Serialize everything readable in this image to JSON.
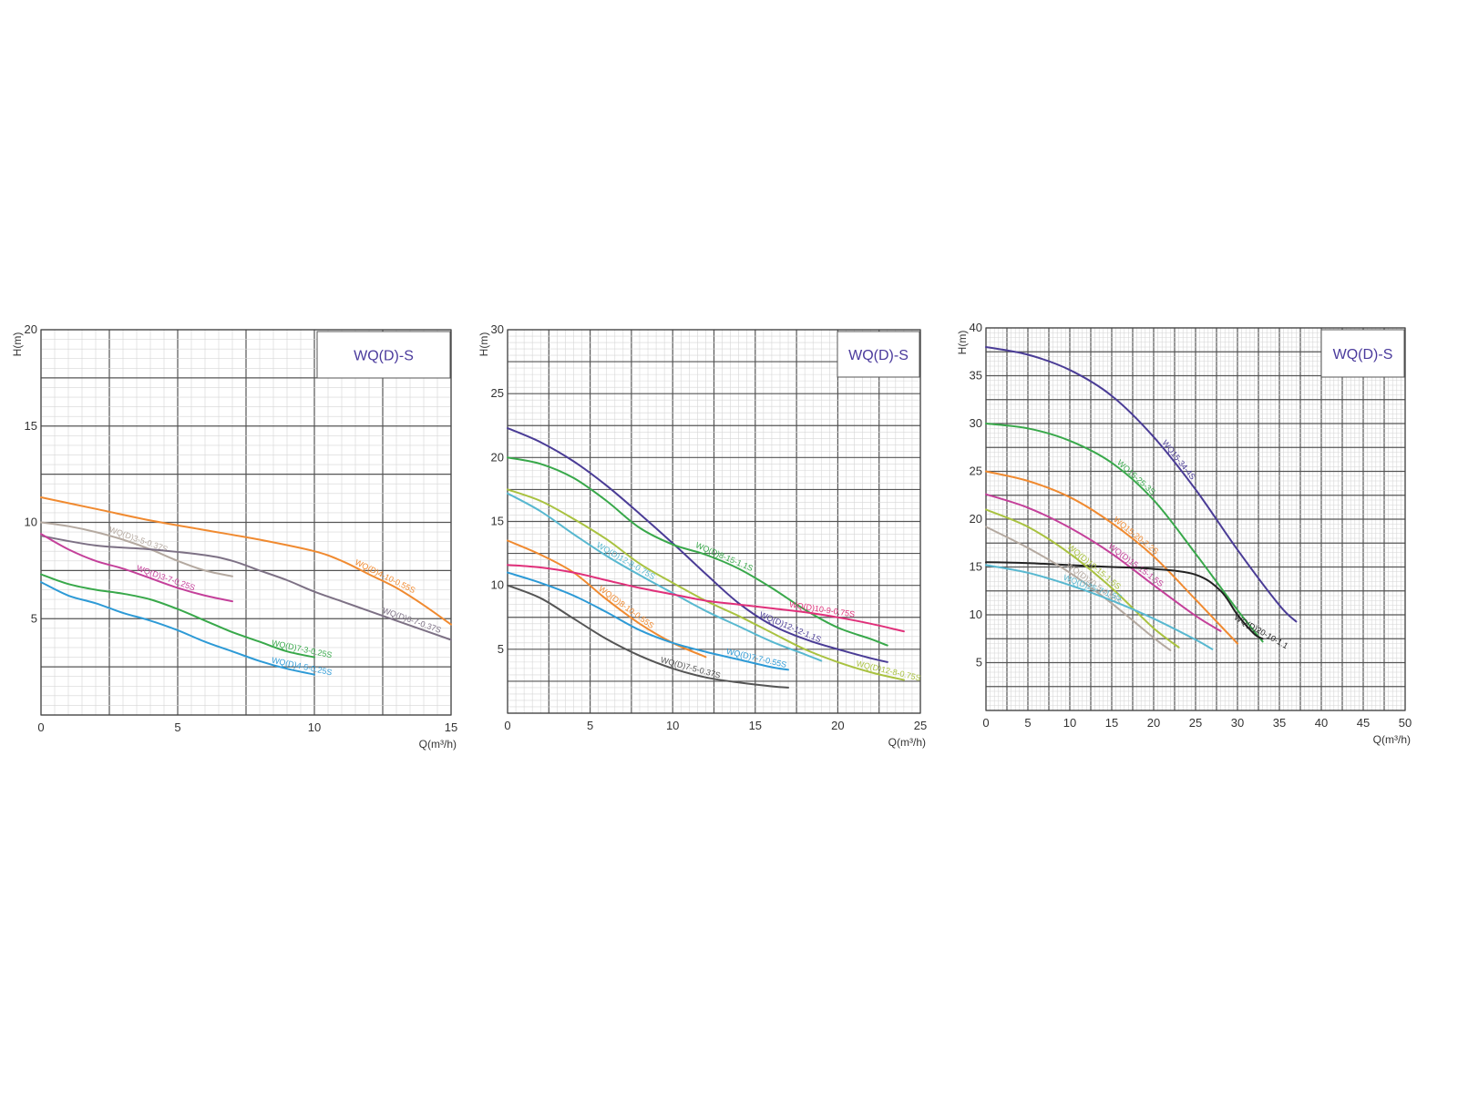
{
  "chart_data": [
    {
      "type": "line",
      "title": "WQ(D)-S",
      "xlabel": "Q(m³/h)",
      "ylabel": "H(m)",
      "xlim": [
        0,
        15
      ],
      "ylim": [
        0,
        20
      ],
      "xticks": [
        "0",
        "5",
        "10",
        "15"
      ],
      "yticks": [
        "5",
        "10",
        "15",
        "20"
      ],
      "grid": true,
      "series": [
        {
          "name": "WQ(D)4-10-0.55S",
          "color": "#f08a30",
          "x": [
            0,
            2,
            4,
            6,
            8,
            10,
            11,
            12,
            13,
            14,
            15
          ],
          "y": [
            11.3,
            10.7,
            10.1,
            9.6,
            9.1,
            8.5,
            8.0,
            7.3,
            6.6,
            5.7,
            4.7
          ]
        },
        {
          "name": "WQ(D)3-5-0.37S",
          "color": "#b4a9a0",
          "x": [
            0,
            1,
            2,
            3,
            4,
            5,
            6,
            7
          ],
          "y": [
            10.0,
            9.8,
            9.5,
            9.1,
            8.6,
            8.0,
            7.5,
            7.2
          ]
        },
        {
          "name": "WQ(D)6-7-0.37S",
          "color": "#7d7185",
          "x": [
            0,
            2,
            4,
            6,
            7,
            8,
            9,
            10,
            11,
            12,
            13,
            14,
            15
          ],
          "y": [
            9.3,
            8.8,
            8.6,
            8.3,
            8.0,
            7.5,
            7.0,
            6.4,
            5.9,
            5.4,
            4.9,
            4.4,
            3.9
          ]
        },
        {
          "name": "WQ(D)3-7-0.25S",
          "color": "#c4409a",
          "x": [
            0,
            1,
            2,
            3,
            4,
            5,
            6,
            7
          ],
          "y": [
            9.4,
            8.6,
            8.0,
            7.6,
            7.1,
            6.6,
            6.2,
            5.9
          ]
        },
        {
          "name": "WQ(D)7-3-0.25S",
          "color": "#38a84a",
          "x": [
            0,
            1,
            2,
            3,
            4,
            5,
            6,
            7,
            8,
            9,
            10
          ],
          "y": [
            7.3,
            6.8,
            6.5,
            6.3,
            6.0,
            5.5,
            4.9,
            4.3,
            3.8,
            3.3,
            3.0
          ]
        },
        {
          "name": "WQ(D)4-5-0.25S",
          "color": "#2d9ad6",
          "x": [
            0,
            1,
            2,
            3,
            4,
            5,
            6,
            7,
            8,
            9,
            10
          ],
          "y": [
            6.9,
            6.2,
            5.8,
            5.3,
            4.9,
            4.4,
            3.8,
            3.3,
            2.8,
            2.4,
            2.1
          ]
        }
      ]
    },
    {
      "type": "line",
      "title": "WQ(D)-S",
      "xlabel": "Q(m³/h)",
      "ylabel": "H(m)",
      "xlim": [
        0,
        25
      ],
      "ylim": [
        0,
        30
      ],
      "xticks": [
        "0",
        "5",
        "10",
        "15",
        "20",
        "25"
      ],
      "yticks": [
        "5",
        "10",
        "15",
        "20",
        "25",
        "30"
      ],
      "grid": true,
      "series": [
        {
          "name": "WQ(D)12-12-1.1S",
          "color": "#4a3c96",
          "x": [
            0,
            2,
            4,
            6,
            8,
            10,
            12,
            14,
            16,
            18,
            20,
            22,
            23
          ],
          "y": [
            22.3,
            21.2,
            19.7,
            17.8,
            15.6,
            13.3,
            10.9,
            8.6,
            6.9,
            5.8,
            5.0,
            4.3,
            4.0
          ]
        },
        {
          "name": "WQ(D)8-15-1.1S",
          "color": "#38a84a",
          "x": [
            0,
            2,
            4,
            6,
            8,
            10,
            12,
            14,
            16,
            18,
            20,
            22,
            23
          ],
          "y": [
            20.0,
            19.5,
            18.4,
            16.6,
            14.5,
            13.2,
            12.4,
            11.3,
            9.8,
            8.1,
            6.7,
            5.8,
            5.3
          ]
        },
        {
          "name": "WQ(D)12-8-0.75S",
          "color": "#a9c240",
          "x": [
            0,
            2,
            4,
            6,
            8,
            10,
            12,
            14,
            16,
            18,
            20,
            22,
            24
          ],
          "y": [
            17.5,
            16.6,
            15.2,
            13.6,
            11.7,
            10.2,
            8.8,
            7.6,
            6.3,
            5.0,
            4.0,
            3.2,
            2.6
          ]
        },
        {
          "name": "WQ(D)12-8-0.75S",
          "color": "#58b8d0",
          "x": [
            0,
            2,
            4,
            6,
            8,
            10,
            12,
            14,
            16,
            18,
            19
          ],
          "y": [
            17.2,
            15.8,
            14.0,
            12.3,
            10.8,
            9.4,
            8.0,
            6.8,
            5.6,
            4.6,
            4.1
          ]
        },
        {
          "name": "WQ(D)8-10-0.55S",
          "color": "#f08a30",
          "x": [
            0,
            2,
            4,
            6,
            8,
            10,
            12
          ],
          "y": [
            13.5,
            12.4,
            11.0,
            8.9,
            7.0,
            5.5,
            4.4
          ]
        },
        {
          "name": "WQ(D)10-9-0.75S",
          "color": "#e0307a",
          "x": [
            0,
            2,
            4,
            6,
            8,
            10,
            12,
            14,
            16,
            18,
            20,
            22,
            24
          ],
          "y": [
            11.6,
            11.4,
            11.0,
            10.4,
            9.8,
            9.3,
            8.8,
            8.5,
            8.2,
            7.9,
            7.5,
            7.0,
            6.4
          ]
        },
        {
          "name": "WQ(D)7-7-0.55S",
          "color": "#2d9ad6",
          "x": [
            0,
            2,
            4,
            6,
            8,
            10,
            12,
            14,
            16,
            17
          ],
          "y": [
            11.0,
            10.2,
            9.2,
            7.9,
            6.5,
            5.5,
            4.8,
            4.2,
            3.6,
            3.4
          ]
        },
        {
          "name": "WQ(D)7-5-0.37S",
          "color": "#555555",
          "x": [
            0,
            2,
            4,
            6,
            8,
            10,
            12,
            14,
            16,
            17
          ],
          "y": [
            10.0,
            9.0,
            7.4,
            5.8,
            4.5,
            3.5,
            2.8,
            2.4,
            2.1,
            2.0
          ]
        }
      ]
    },
    {
      "type": "line",
      "title": "WQ(D)-S",
      "xlabel": "Q(m³/h)",
      "ylabel": "H(m)",
      "xlim": [
        0,
        50
      ],
      "ylim": [
        0,
        40
      ],
      "xticks": [
        "0",
        "5",
        "10",
        "15",
        "20",
        "25",
        "30",
        "35",
        "40",
        "45",
        "50"
      ],
      "yticks": [
        "5",
        "10",
        "15",
        "20",
        "25",
        "30",
        "35",
        "40"
      ],
      "grid": true,
      "series": [
        {
          "name": "WQ15-34-4S",
          "color": "#4a3c96",
          "x": [
            0,
            5,
            10,
            15,
            20,
            25,
            30,
            35,
            37
          ],
          "y": [
            38.0,
            37.2,
            35.6,
            32.9,
            28.6,
            23.1,
            16.8,
            11.0,
            9.3
          ]
        },
        {
          "name": "WQ15-25-3S",
          "color": "#38a84a",
          "x": [
            0,
            5,
            10,
            15,
            20,
            25,
            30,
            33
          ],
          "y": [
            30.0,
            29.5,
            28.2,
            25.9,
            22.0,
            16.4,
            10.5,
            7.2
          ]
        },
        {
          "name": "WQ15-20-2.2S",
          "color": "#f08a30",
          "x": [
            0,
            5,
            10,
            15,
            20,
            25,
            30
          ],
          "y": [
            25.0,
            24.0,
            22.3,
            19.6,
            16.1,
            11.6,
            7.0
          ]
        },
        {
          "name": "WQ(D)15-15-1.5S",
          "color": "#c4409a",
          "x": [
            0,
            5,
            10,
            15,
            20,
            25,
            28
          ],
          "y": [
            22.6,
            21.2,
            19.1,
            16.4,
            13.1,
            9.9,
            8.3
          ]
        },
        {
          "name": "WQ(D)20-10-1.1",
          "color": "#222222",
          "x": [
            0,
            5,
            10,
            15,
            20,
            25,
            28,
            30,
            32,
            33
          ],
          "y": [
            15.5,
            15.4,
            15.2,
            15.0,
            14.8,
            14.2,
            12.5,
            10.0,
            8.0,
            7.5
          ]
        },
        {
          "name": "WQ(D)10-15-1.5S",
          "color": "#a9c240",
          "x": [
            0,
            5,
            10,
            15,
            20,
            23
          ],
          "y": [
            21.0,
            19.2,
            16.4,
            12.8,
            8.6,
            6.6
          ]
        },
        {
          "name": "WQ(D)20-5-0.55S",
          "color": "#b4a9a0",
          "x": [
            0,
            5,
            10,
            15,
            20,
            22
          ],
          "y": [
            19.2,
            17.0,
            14.4,
            11.2,
            7.6,
            6.3
          ]
        },
        {
          "name": "WQ(D)25-7-1.5S",
          "color": "#58b8d0",
          "x": [
            0,
            5,
            10,
            15,
            20,
            25,
            27
          ],
          "y": [
            15.2,
            14.4,
            13.1,
            11.5,
            9.6,
            7.4,
            6.4
          ]
        }
      ]
    }
  ]
}
